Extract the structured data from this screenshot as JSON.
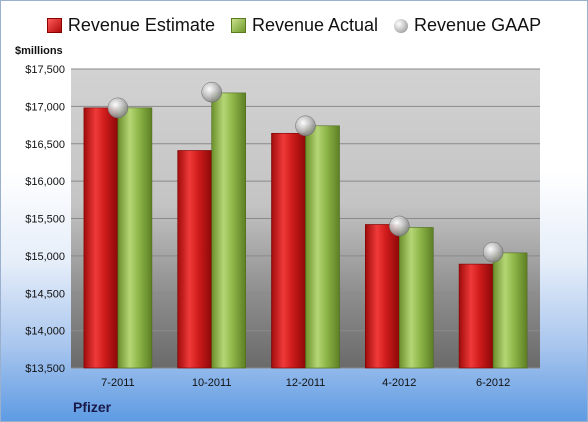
{
  "legend": {
    "estimate": "Revenue Estimate",
    "actual": "Revenue Actual",
    "gaap": "Revenue GAAP"
  },
  "unit_label": "$millions",
  "company": "Pfizer",
  "colors": {
    "estimate": "#d01c1c",
    "actual": "#8fb84a",
    "gaap": "#b0b0b0"
  },
  "chart_data": {
    "type": "bar",
    "categories": [
      "7-2011",
      "10-2011",
      "12-2011",
      "4-2012",
      "6-2012"
    ],
    "series": [
      {
        "name": "Revenue Estimate",
        "values": [
          16980,
          16410,
          16640,
          15420,
          14890
        ]
      },
      {
        "name": "Revenue Actual",
        "values": [
          16980,
          17180,
          16740,
          15380,
          15040
        ]
      },
      {
        "name": "Revenue GAAP",
        "values": [
          16980,
          17190,
          16740,
          15400,
          15050
        ]
      }
    ],
    "ylabel": "$millions",
    "ylim": [
      13500,
      17500
    ],
    "yticks": [
      13500,
      14000,
      14500,
      15000,
      15500,
      16000,
      16500,
      17000,
      17500
    ],
    "ytick_labels": [
      "$13,500",
      "$14,000",
      "$14,500",
      "$15,000",
      "$15,500",
      "$16,000",
      "$16,500",
      "$17,000",
      "$17,500"
    ],
    "grid": true,
    "legend_position": "top"
  }
}
